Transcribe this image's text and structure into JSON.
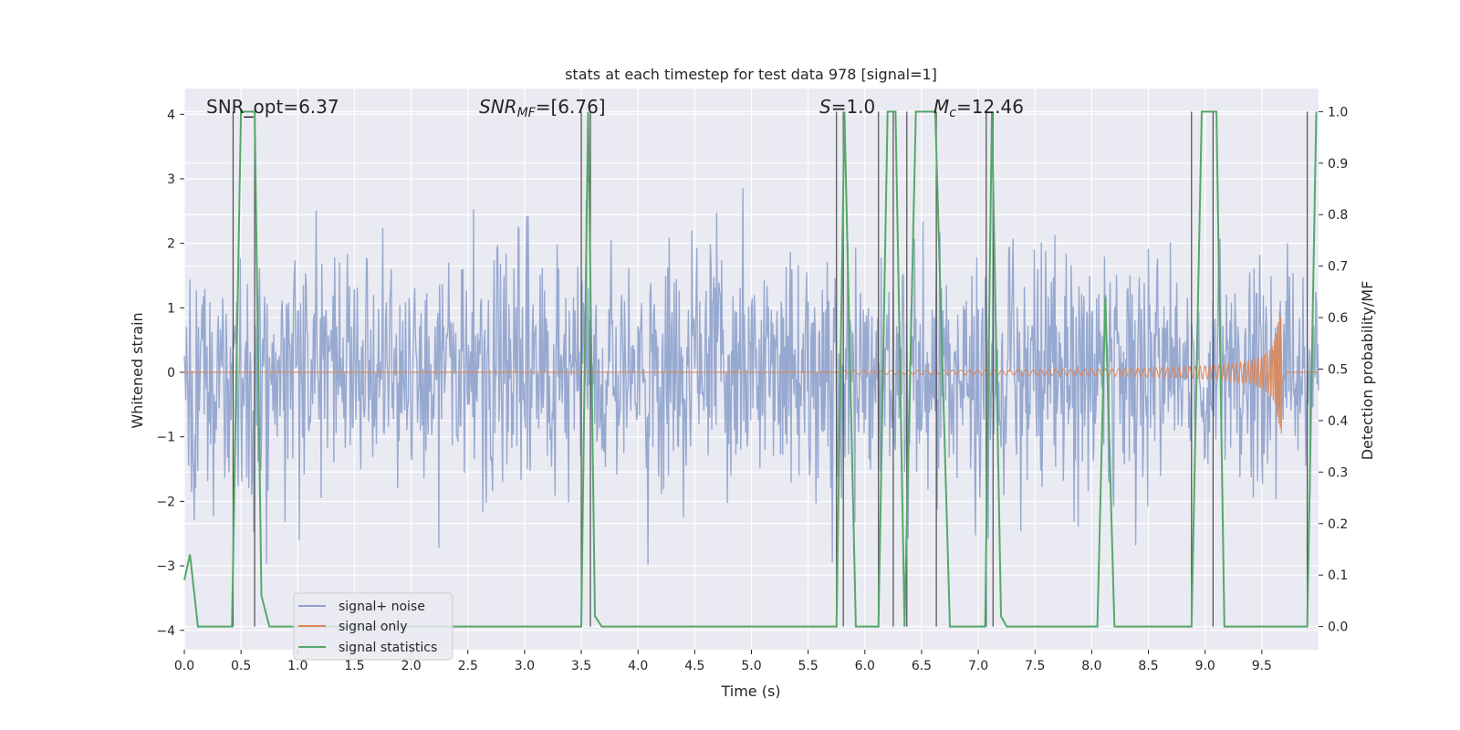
{
  "chart_data": {
    "type": "line",
    "title": "stats at each timestep for test data 978 [signal=1]",
    "xlabel": "Time (s)",
    "ylabel": "Whitened strain",
    "y2label": "Detection probability/MF",
    "xlim": [
      0,
      10
    ],
    "ylim": [
      -4.3,
      4.4
    ],
    "y2lim": [
      -0.045,
      1.045
    ],
    "xticks": [
      "0.0",
      "0.5",
      "1.0",
      "1.5",
      "2.0",
      "2.5",
      "3.0",
      "3.5",
      "4.0",
      "4.5",
      "5.0",
      "5.5",
      "6.0",
      "6.5",
      "7.0",
      "7.5",
      "8.0",
      "8.5",
      "9.0",
      "9.5"
    ],
    "yticks": [
      "−4",
      "−3",
      "−2",
      "−1",
      "0",
      "1",
      "2",
      "3",
      "4"
    ],
    "y2ticks": [
      "0.0",
      "0.1",
      "0.2",
      "0.3",
      "0.4",
      "0.5",
      "0.6",
      "0.7",
      "0.8",
      "0.9",
      "1.0"
    ],
    "annotations": {
      "snr_opt": "SNR_opt=6.37",
      "snr_mf_prefix": "SNR",
      "snr_mf_sub": "MF",
      "snr_mf_value": "=[6.76]",
      "s_symbol": "S",
      "s_value": "=1.0",
      "mc_symbol": "M",
      "mc_sub": "c",
      "mc_value": "=12.46"
    },
    "grid": true,
    "legend_placement": "lower-left",
    "series": [
      {
        "name": "signal+ noise",
        "color": "#8ea2cc",
        "values_note": "whitened strain noise, amplitude up to about ±3.4"
      },
      {
        "name": "signal only",
        "color": "#dd8452",
        "chirp_start": 5.8,
        "chirp_end": 9.68,
        "peak_amplitude": 0.95
      },
      {
        "name": "signal statistics",
        "color": "#55a868",
        "x": [
          0.0,
          0.05,
          0.12,
          0.42,
          0.5,
          0.62,
          0.68,
          0.75,
          3.5,
          3.56,
          3.62,
          3.68,
          5.75,
          5.82,
          5.92,
          6.12,
          6.2,
          6.27,
          6.35,
          6.45,
          6.62,
          6.75,
          7.06,
          7.12,
          7.2,
          7.25,
          8.05,
          8.12,
          8.2,
          8.88,
          8.97,
          9.1,
          9.17,
          9.9,
          9.98
        ],
        "values": [
          0.09,
          0.14,
          0.0,
          0.0,
          1.0,
          1.0,
          0.06,
          0.0,
          0.0,
          1.0,
          0.02,
          0.0,
          0.0,
          1.0,
          0.0,
          0.0,
          1.0,
          1.0,
          0.0,
          1.0,
          1.0,
          0.0,
          0.0,
          1.0,
          0.02,
          0.0,
          0.0,
          0.64,
          0.0,
          0.0,
          1.0,
          1.0,
          0.0,
          0.0,
          1.0
        ]
      }
    ],
    "vlines_x": [
      0.43,
      0.62,
      3.5,
      3.58,
      5.75,
      5.81,
      6.12,
      6.25,
      6.37,
      6.63,
      7.07,
      7.13,
      8.88,
      9.07,
      9.9
    ]
  },
  "colors": {
    "axes_bg": "#eaeaf2",
    "grid": "#ffffff",
    "noise": "#8ea2cc",
    "signal": "#dd8452",
    "stats": "#55a868",
    "vline": "#4d4d4d"
  },
  "legend": {
    "noise": "signal+ noise",
    "signal": "signal only",
    "stats": "signal statistics"
  }
}
